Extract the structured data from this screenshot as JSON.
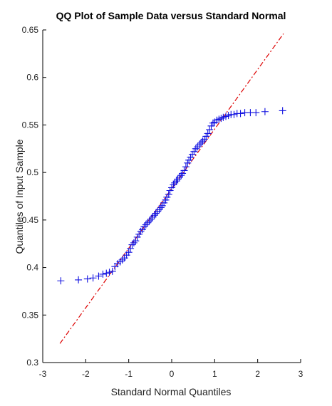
{
  "chart_data": {
    "type": "scatter",
    "title": "QQ Plot of Sample Data versus Standard Normal",
    "xlabel": "Standard Normal Quantiles",
    "ylabel": "Quantiles of Input Sample",
    "xlim": [
      -3,
      3
    ],
    "ylim": [
      0.3,
      0.65
    ],
    "xticks": [
      "-3",
      "-2",
      "-1",
      "0",
      "1",
      "2",
      "3"
    ],
    "yticks": [
      "0.3",
      "0.35",
      "0.4",
      "0.45",
      "0.5",
      "0.55",
      "0.6",
      "0.65"
    ],
    "grid": false,
    "marker": "+",
    "colors": {
      "points": "#1010e0",
      "reference_line": "#dd0000",
      "axis": "#000000"
    },
    "reference_line": {
      "style": "dash-dot",
      "x": [
        -2.6,
        2.6
      ],
      "y": [
        0.32,
        0.646
      ]
    },
    "points": [
      [
        -2.58,
        0.386
      ],
      [
        -2.17,
        0.387
      ],
      [
        -1.96,
        0.388
      ],
      [
        -1.83,
        0.389
      ],
      [
        -1.7,
        0.391
      ],
      [
        -1.6,
        0.393
      ],
      [
        -1.52,
        0.394
      ],
      [
        -1.45,
        0.395
      ],
      [
        -1.38,
        0.396
      ],
      [
        -1.32,
        0.401
      ],
      [
        -1.26,
        0.404
      ],
      [
        -1.2,
        0.406
      ],
      [
        -1.15,
        0.408
      ],
      [
        -1.1,
        0.41
      ],
      [
        -1.05,
        0.413
      ],
      [
        -1.0,
        0.416
      ],
      [
        -0.96,
        0.42
      ],
      [
        -0.92,
        0.424
      ],
      [
        -0.88,
        0.426
      ],
      [
        -0.84,
        0.428
      ],
      [
        -0.8,
        0.432
      ],
      [
        -0.76,
        0.435
      ],
      [
        -0.72,
        0.438
      ],
      [
        -0.68,
        0.44
      ],
      [
        -0.64,
        0.443
      ],
      [
        -0.6,
        0.445
      ],
      [
        -0.56,
        0.447
      ],
      [
        -0.52,
        0.449
      ],
      [
        -0.48,
        0.451
      ],
      [
        -0.44,
        0.453
      ],
      [
        -0.4,
        0.455
      ],
      [
        -0.37,
        0.457
      ],
      [
        -0.33,
        0.459
      ],
      [
        -0.29,
        0.461
      ],
      [
        -0.25,
        0.463
      ],
      [
        -0.22,
        0.465
      ],
      [
        -0.18,
        0.468
      ],
      [
        -0.14,
        0.471
      ],
      [
        -0.11,
        0.474
      ],
      [
        -0.07,
        0.477
      ],
      [
        -0.04,
        0.481
      ],
      [
        0.0,
        0.484
      ],
      [
        0.04,
        0.487
      ],
      [
        0.07,
        0.489
      ],
      [
        0.11,
        0.491
      ],
      [
        0.14,
        0.493
      ],
      [
        0.18,
        0.495
      ],
      [
        0.22,
        0.497
      ],
      [
        0.25,
        0.499
      ],
      [
        0.29,
        0.502
      ],
      [
        0.33,
        0.506
      ],
      [
        0.37,
        0.51
      ],
      [
        0.4,
        0.513
      ],
      [
        0.44,
        0.516
      ],
      [
        0.48,
        0.519
      ],
      [
        0.52,
        0.522
      ],
      [
        0.56,
        0.525
      ],
      [
        0.6,
        0.527
      ],
      [
        0.64,
        0.529
      ],
      [
        0.68,
        0.531
      ],
      [
        0.72,
        0.533
      ],
      [
        0.76,
        0.535
      ],
      [
        0.8,
        0.538
      ],
      [
        0.84,
        0.541
      ],
      [
        0.88,
        0.545
      ],
      [
        0.92,
        0.549
      ],
      [
        0.96,
        0.552
      ],
      [
        1.0,
        0.553
      ],
      [
        1.05,
        0.555
      ],
      [
        1.1,
        0.556
      ],
      [
        1.15,
        0.557
      ],
      [
        1.2,
        0.558
      ],
      [
        1.26,
        0.559
      ],
      [
        1.32,
        0.56
      ],
      [
        1.38,
        0.561
      ],
      [
        1.45,
        0.561
      ],
      [
        1.52,
        0.562
      ],
      [
        1.6,
        0.562
      ],
      [
        1.7,
        0.563
      ],
      [
        1.83,
        0.563
      ],
      [
        1.96,
        0.563
      ],
      [
        2.17,
        0.564
      ],
      [
        2.58,
        0.565
      ]
    ]
  }
}
